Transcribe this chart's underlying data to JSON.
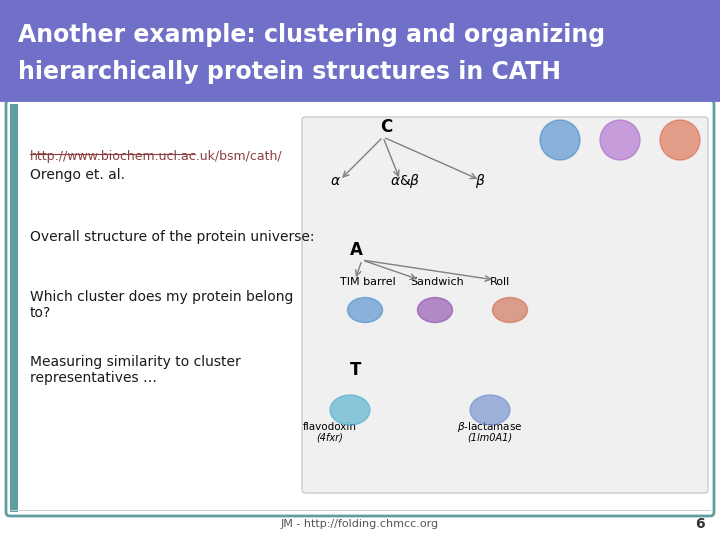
{
  "title_line1": "Another example: clustering and organizing",
  "title_line2": "hierarchically protein structures in CATH",
  "title_bg_color": "#7070c8",
  "title_text_color": "#ffffff",
  "slide_bg_color": "#ffffff",
  "border_color": "#7070c8",
  "content_bg_color": "#f8f8f8",
  "link_text": "http://www.biochem.ucl.ac.uk/bsm/cath/",
  "link_color": "#8b4040",
  "author_text": "Orengo et. al.",
  "bullet1": "Overall structure of the protein universe:",
  "bullet2": "Which cluster does my protein belong\nto?",
  "bullet3": "Measuring similarity to cluster\nrepresentatives …",
  "footer_text": "JM - http://folding.chmcc.org",
  "footer_number": "6",
  "text_color": "#1a1a1a",
  "accent_color": "#5f9ea0",
  "divider_color": "#cccccc"
}
